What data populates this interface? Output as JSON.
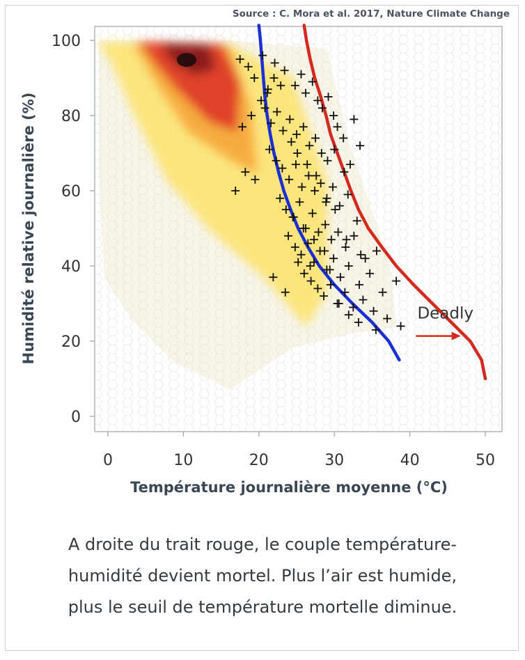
{
  "source": "Source : C. Mora et al. 2017, Nature Climate Change",
  "chart_data": {
    "type": "scatter",
    "xlabel": "Température journalière moyenne (°C)",
    "ylabel": "Humidité relative journalière (%)",
    "xlim": [
      -2,
      52
    ],
    "ylim": [
      -4,
      104
    ],
    "xticks": [
      0,
      10,
      20,
      30,
      40,
      50
    ],
    "yticks": [
      0,
      20,
      40,
      60,
      80,
      100
    ],
    "grid": false,
    "colors": {
      "red_line": "#d42a1e",
      "blue_line": "#1a2fd6",
      "markers": "#111111"
    },
    "annotations": [
      {
        "text": "Deadly",
        "x": 41,
        "y": 26,
        "arrow_to": [
          46,
          21
        ]
      }
    ],
    "series": [
      {
        "style": "red-line",
        "x": [
          26,
          26.3,
          26.8,
          27.4,
          28.2,
          28.9,
          29.5,
          30.4,
          31.3,
          32.2,
          33.2,
          34.5,
          36.3,
          38.2,
          40.5,
          43,
          45.5,
          48,
          49.5,
          50
        ],
        "y": [
          104,
          100,
          95,
          90,
          85,
          80,
          75,
          70,
          65,
          60,
          55,
          50,
          45,
          40,
          35,
          30,
          25,
          20,
          15,
          10
        ]
      },
      {
        "style": "blue-line",
        "x": [
          20,
          20.2,
          20.4,
          20.6,
          20.8,
          21.1,
          21.5,
          22,
          22.6,
          23.3,
          24.2,
          25.2,
          26.5,
          28,
          30,
          32.4,
          35,
          37.2,
          38.6
        ],
        "y": [
          104,
          100,
          95,
          90,
          85,
          80,
          75,
          70,
          65,
          60,
          55,
          50,
          45,
          40,
          35,
          30,
          25,
          20,
          15
        ]
      },
      {
        "style": "cross-markers",
        "x": [
          17.5,
          18.6,
          19.4,
          20.5,
          21.2,
          22.1,
          23.4,
          24.8,
          25.6,
          26.2,
          27.1,
          27.8,
          28.4,
          29.2,
          29.9,
          30.4,
          31.2,
          32.6,
          33.4,
          20.8,
          21.6,
          22.4,
          23.2,
          24.1,
          25,
          25.9,
          26.7,
          27.5,
          28.3,
          29.1,
          30,
          31.3,
          32.1,
          21.4,
          22.3,
          23.1,
          24,
          24.9,
          25.7,
          26.6,
          27.4,
          28.2,
          29,
          29.8,
          30.7,
          31.8,
          33,
          22.8,
          23.6,
          24.5,
          25.4,
          26.2,
          27.1,
          27.9,
          28.8,
          29.6,
          30.5,
          31.5,
          32.6,
          34.1,
          35.6,
          23.9,
          24.8,
          25.6,
          26.5,
          27.3,
          28.1,
          29,
          29.9,
          30.8,
          31.9,
          33.3,
          34.7,
          36.4,
          38.2,
          25.2,
          26,
          26.9,
          27.8,
          28.6,
          29.5,
          30.4,
          31.4,
          32.5,
          33.8,
          35.2,
          37,
          38.8,
          16.9,
          17.8,
          19,
          18.2,
          19.5,
          20.3,
          21.1,
          22,
          22.9,
          24.3,
          25.1,
          26.4,
          27.6,
          28.9,
          30.1,
          31.6,
          33.5,
          30.6,
          31.9,
          33.2,
          35.5,
          24.6,
          25.9,
          27.3,
          28.7,
          21.9,
          23.5,
          26.8,
          29.4
        ],
        "y": [
          95,
          93,
          90,
          96,
          87,
          94,
          92,
          88,
          91,
          86,
          89,
          84,
          82,
          85,
          80,
          77,
          74,
          79,
          72,
          82,
          78,
          81,
          76,
          79,
          75,
          77,
          72,
          74,
          70,
          68,
          71,
          65,
          67,
          71,
          68,
          66,
          63,
          67,
          61,
          64,
          60,
          62,
          58,
          61,
          56,
          59,
          52,
          58,
          55,
          53,
          57,
          50,
          54,
          49,
          51,
          47,
          49,
          45,
          48,
          42,
          44,
          48,
          45,
          43,
          46,
          41,
          44,
          39,
          42,
          37,
          40,
          35,
          38,
          33,
          36,
          41,
          38,
          36,
          34,
          32,
          35,
          30,
          33,
          29,
          31,
          28,
          26,
          24,
          60,
          77,
          80,
          65,
          63,
          84,
          86,
          90,
          88,
          73,
          70,
          67,
          64,
          57,
          55,
          47,
          43,
          30,
          27,
          25,
          23,
          53,
          50,
          47,
          44,
          37,
          33,
          40,
          39
        ]
      }
    ]
  },
  "caption": {
    "line1": "A droite du trait rouge, le couple température-",
    "line2": "humidité devient mortel. Plus l’air est humide,",
    "line3": "plus le seuil de température mortelle diminue."
  }
}
